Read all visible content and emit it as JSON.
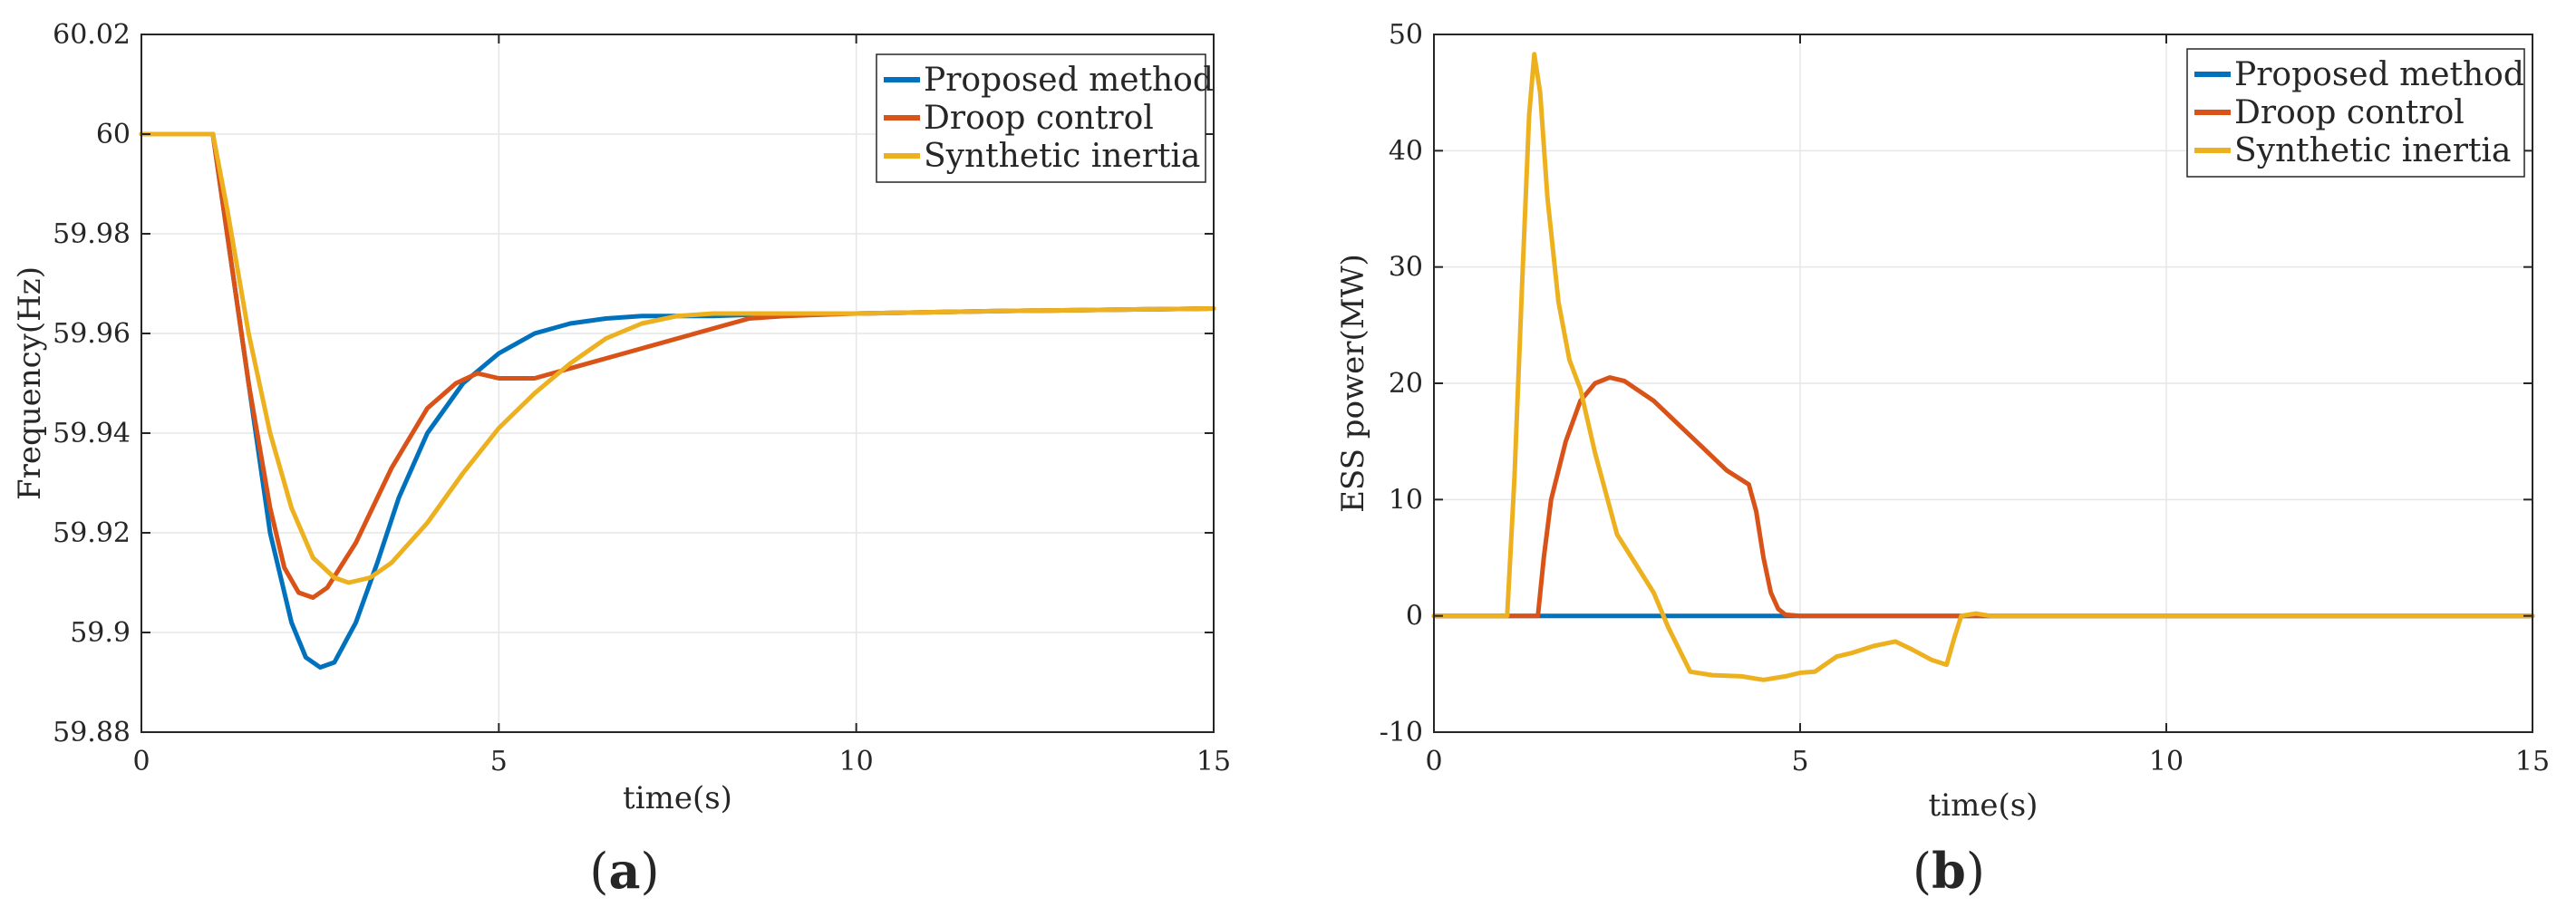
{
  "colors": {
    "proposed": "#0072BD",
    "droop": "#D95319",
    "synthetic": "#EDB120",
    "grid": "#e6e6e6",
    "axis": "#262626"
  },
  "chart_data": [
    {
      "type": "line",
      "panel_label": "(a)",
      "xlabel": "time(s)",
      "ylabel": "Frequency(Hz)",
      "xlim": [
        0,
        15
      ],
      "ylim": [
        59.88,
        60.02
      ],
      "xticks": [
        0,
        5,
        10,
        15
      ],
      "xtick_labels": [
        "0",
        "5",
        "10",
        "15"
      ],
      "yticks": [
        59.88,
        59.9,
        59.92,
        59.94,
        59.96,
        59.98,
        60,
        60.02
      ],
      "ytick_labels": [
        "59.88",
        "59.9",
        "59.92",
        "59.94",
        "59.96",
        "59.98",
        "60",
        "60.02"
      ],
      "grid": true,
      "legend_position": "top-right",
      "series": [
        {
          "name": "Proposed method",
          "color_key": "proposed",
          "x": [
            0,
            1.0,
            1.2,
            1.5,
            1.8,
            2.1,
            2.3,
            2.5,
            2.7,
            3.0,
            3.3,
            3.6,
            4.0,
            4.5,
            5.0,
            5.5,
            6.0,
            6.5,
            7.0,
            8.0,
            9.0,
            10.0,
            12.0,
            15.0
          ],
          "y": [
            60.0,
            60.0,
            59.98,
            59.95,
            59.92,
            59.902,
            59.895,
            59.893,
            59.894,
            59.902,
            59.914,
            59.927,
            59.94,
            59.95,
            59.956,
            59.96,
            59.962,
            59.963,
            59.9635,
            59.9635,
            59.964,
            59.964,
            59.9645,
            59.965
          ]
        },
        {
          "name": "Droop control",
          "color_key": "droop",
          "x": [
            0,
            1.0,
            1.2,
            1.5,
            1.8,
            2.0,
            2.2,
            2.4,
            2.6,
            3.0,
            3.5,
            4.0,
            4.4,
            4.7,
            5.0,
            5.5,
            6.0,
            6.5,
            7.0,
            7.5,
            8.0,
            8.5,
            9.0,
            10.0,
            12.0,
            15.0
          ],
          "y": [
            60.0,
            60.0,
            59.98,
            59.95,
            59.925,
            59.913,
            59.908,
            59.907,
            59.909,
            59.918,
            59.933,
            59.945,
            59.95,
            59.952,
            59.951,
            59.951,
            59.953,
            59.955,
            59.957,
            59.959,
            59.961,
            59.963,
            59.9635,
            59.964,
            59.9645,
            59.965
          ]
        },
        {
          "name": "Synthetic inertia",
          "color_key": "synthetic",
          "x": [
            0,
            1.0,
            1.2,
            1.5,
            1.8,
            2.1,
            2.4,
            2.7,
            2.9,
            3.2,
            3.5,
            4.0,
            4.5,
            5.0,
            5.5,
            6.0,
            6.5,
            7.0,
            7.5,
            8.0,
            9.0,
            10.0,
            12.0,
            15.0
          ],
          "y": [
            60.0,
            60.0,
            59.985,
            59.96,
            59.94,
            59.925,
            59.915,
            59.911,
            59.91,
            59.911,
            59.914,
            59.922,
            59.932,
            59.941,
            59.948,
            59.954,
            59.959,
            59.962,
            59.9635,
            59.964,
            59.964,
            59.964,
            59.9645,
            59.965
          ]
        }
      ]
    },
    {
      "type": "line",
      "panel_label": "(b)",
      "xlabel": "time(s)",
      "ylabel": "ESS power(MW)",
      "xlim": [
        0,
        15
      ],
      "ylim": [
        -10,
        50
      ],
      "xticks": [
        0,
        5,
        10,
        15
      ],
      "xtick_labels": [
        "0",
        "5",
        "10",
        "15"
      ],
      "yticks": [
        -10,
        0,
        10,
        20,
        30,
        40,
        50
      ],
      "ytick_labels": [
        "-10",
        "0",
        "10",
        "20",
        "30",
        "40",
        "50"
      ],
      "grid": true,
      "legend_position": "top-right",
      "series": [
        {
          "name": "Proposed method",
          "color_key": "proposed",
          "x": [
            0,
            15
          ],
          "y": [
            0,
            0
          ]
        },
        {
          "name": "Droop control",
          "color_key": "droop",
          "x": [
            0,
            1.42,
            1.5,
            1.6,
            1.8,
            2.0,
            2.2,
            2.4,
            2.6,
            3.0,
            3.5,
            4.0,
            4.3,
            4.4,
            4.5,
            4.6,
            4.7,
            4.8,
            5.0,
            15.0
          ],
          "y": [
            0,
            0,
            5,
            10,
            15,
            18.5,
            20,
            20.5,
            20.2,
            18.5,
            15.5,
            12.5,
            11.3,
            9,
            5,
            2,
            0.6,
            0.1,
            0,
            0
          ]
        },
        {
          "name": "Synthetic inertia",
          "color_key": "synthetic",
          "x": [
            0,
            1.0,
            1.1,
            1.2,
            1.3,
            1.37,
            1.45,
            1.55,
            1.7,
            1.85,
            2.0,
            2.2,
            2.5,
            2.7,
            3.0,
            3.2,
            3.5,
            3.8,
            4.2,
            4.5,
            4.8,
            5.0,
            5.2,
            5.5,
            5.7,
            6.0,
            6.3,
            6.5,
            6.8,
            7.0,
            7.1,
            7.2,
            7.4,
            7.6,
            15.0
          ],
          "y": [
            0,
            0,
            12,
            28,
            43,
            48.3,
            45,
            36,
            27,
            22,
            19.5,
            14,
            7,
            5,
            2,
            -1,
            -4.8,
            -5.1,
            -5.2,
            -5.5,
            -5.2,
            -4.9,
            -4.8,
            -3.5,
            -3.2,
            -2.6,
            -2.2,
            -2.8,
            -3.8,
            -4.2,
            -2,
            0,
            0.2,
            0,
            0
          ]
        }
      ]
    }
  ]
}
